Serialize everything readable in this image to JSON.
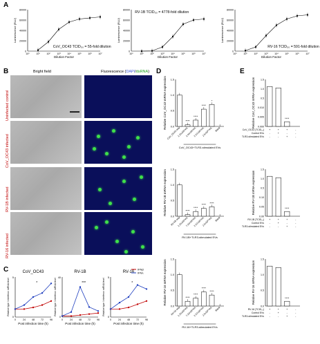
{
  "panel_labels": {
    "a": "A",
    "b": "B",
    "c": "C",
    "d": "D",
    "e": "E"
  },
  "panelA": {
    "ylabel": "Luminescence (RLU)",
    "xlabel": "Dilution Factor",
    "charts": [
      {
        "title": "CoV_OC43 TCID₅₀ = 55-fold dilution",
        "yticks": [
          "0",
          "20000",
          "40000",
          "60000",
          "80000"
        ],
        "ylim": [
          0,
          80000
        ],
        "x": [
          1,
          2,
          3,
          4,
          5,
          6,
          7
        ],
        "y": [
          2000,
          18000,
          42000,
          56000,
          62000,
          64000,
          66000
        ]
      },
      {
        "title": "RV-1B TCID₅₀ = 4778-fold dilution",
        "yticks": [
          "0",
          "20000",
          "40000",
          "60000",
          "80000"
        ],
        "ylim": [
          0,
          80000
        ],
        "x": [
          1,
          2,
          3,
          4,
          5,
          6,
          7
        ],
        "y": [
          0,
          500,
          8000,
          28000,
          52000,
          60000,
          62000
        ]
      },
      {
        "title": "RV-16 TCID₅₀ = 591-fold dilution",
        "yticks": [
          "0",
          "20000",
          "40000",
          "60000",
          "80000"
        ],
        "ylim": [
          0,
          80000
        ],
        "x": [
          1,
          2,
          3,
          4,
          5,
          6,
          7
        ],
        "y": [
          1000,
          8000,
          30000,
          50000,
          62000,
          68000,
          70000
        ]
      }
    ],
    "xticks": [
      "10⁰",
      "10¹",
      "10²",
      "10³",
      "10⁴",
      "10⁵",
      "10⁶",
      "10⁷"
    ]
  },
  "panelB": {
    "col_bright": "Bright field",
    "col_fluor_pre": "Fluorescence (",
    "col_fluor_dapi": "DAPI",
    "col_fluor_sep": "/",
    "col_fluor_ds": "dsRNA",
    "col_fluor_post": ")",
    "rows": [
      "Uninfected control",
      "CoV_OC43 infected",
      "RV-1B infected",
      "RV-16 infected"
    ]
  },
  "panelC": {
    "ylabel": "Relative type I interferon mRNA level",
    "xlabel": "Post infection time (h)",
    "legend": [
      "IFNβ",
      "IFNλ"
    ],
    "legend_colors": [
      "#c00000",
      "#1f3fbf"
    ],
    "xticks": [
      "0",
      "24",
      "48",
      "72",
      "96"
    ],
    "charts": [
      {
        "title": "CoV_OC43",
        "ymax": "5",
        "ifnb": [
          1,
          1,
          1.2,
          1.5,
          2
        ],
        "ifnl": [
          1,
          1.5,
          2.5,
          3,
          4.2
        ],
        "star": "*"
      },
      {
        "title": "RV-1B",
        "ymax": "40",
        "ifnb": [
          1,
          1,
          2,
          3,
          4
        ],
        "ifnl": [
          1,
          5,
          30,
          10,
          6
        ],
        "star": "***"
      },
      {
        "title": "RV-16",
        "ymax": "5",
        "ifnb": [
          1,
          1,
          1.2,
          1.6,
          2
        ],
        "ifnl": [
          1,
          1.8,
          2.5,
          4,
          3.5
        ],
        "star": "*"
      }
    ]
  },
  "panelD": {
    "charts": [
      {
        "ylabel": "Relative CoV_OC43 mRNA expression",
        "bracket": "CoV_OC43+TLR3-stimulated EVs",
        "cats": [
          "CoV_OC43 only",
          "1.25x10⁹/mL",
          "1.44x10⁹/mL",
          "2.57x10⁹/mL",
          "2.5x10¹⁰/mL",
          "Blank"
        ],
        "values": [
          1,
          0.05,
          0.2,
          0.55,
          0.7,
          0
        ],
        "stars": [
          "",
          "****",
          "****",
          "****",
          "*",
          ""
        ],
        "yticks": [
          "0.0",
          "0.5",
          "1.0",
          "1.5"
        ],
        "ymax": 1.5
      },
      {
        "ylabel": "Relative RV-1B mRNA expression",
        "bracket": "RV-1B+TLR3-stimulated EVs",
        "cats": [
          "RV-1B only",
          "1.25x10⁹/mL",
          "7.14x10⁹/mL",
          "2.57x10⁹/mL",
          "2.5x10¹⁰/mL",
          "Blank"
        ],
        "values": [
          1,
          0.05,
          0.15,
          0.25,
          0.3,
          0
        ],
        "stars": [
          "",
          "****",
          "****",
          "****",
          "****",
          ""
        ],
        "yticks": [
          "0.0",
          "0.5",
          "1.0",
          "1.5"
        ],
        "ymax": 1.5
      },
      {
        "ylabel": "Relative RV-16 mRNA expression",
        "bracket": "RV-16+TLR3-stimulated EVs",
        "cats": [
          "RV-16 only",
          "1.25x10⁹/mL",
          "7.14x10⁹/mL",
          "2.57x10⁹/mL",
          "2.5x10¹⁰/mL",
          "Blank"
        ],
        "values": [
          1,
          0.15,
          0.25,
          0.45,
          0.35,
          0
        ],
        "stars": [
          "",
          "****",
          "****",
          "****",
          "****",
          ""
        ],
        "yticks": [
          "0.0",
          "0.5",
          "1.0",
          "1.5"
        ],
        "ymax": 1.5
      }
    ]
  },
  "panelE": {
    "charts": [
      {
        "ylabel": "Relative CoV_OC43 mRNA expression",
        "rows": [
          "CoV_OC43 (TCID₅₀)",
          "Control EVs",
          "TLR3-stimulated EVs"
        ],
        "values": [
          1,
          1,
          0.004,
          0
        ],
        "stars": [
          "",
          "",
          "****",
          ""
        ],
        "yticks": [
          "0.000",
          "0.005",
          "0.010",
          "0.5",
          "1.0",
          "1.5"
        ]
      },
      {
        "ylabel": "Relative RV-1B mRNA expression",
        "rows": [
          "RV-1B (TCID₅₀)",
          "Control EVs",
          "TLR3-stimulated EVs"
        ],
        "values": [
          1,
          0.9,
          0.02,
          0
        ],
        "stars": [
          "",
          "",
          "****",
          ""
        ],
        "yticks": [
          "0.00",
          "0.05",
          "0.10",
          "0.5",
          "1.0",
          "1.5"
        ]
      },
      {
        "ylabel": "Relative RV-16 mRNA expression",
        "rows": [
          "RV-16 (TCID₅₀)",
          "Control EVs",
          "TLR3-stimulated EVs"
        ],
        "values": [
          1,
          1,
          0.2,
          0
        ],
        "stars": [
          "",
          "",
          "****",
          ""
        ],
        "yticks": [
          "0.0",
          "0.5",
          "1.0",
          "1.5"
        ]
      }
    ],
    "signs": [
      [
        "+",
        "+",
        "+",
        "-"
      ],
      [
        "-",
        "+",
        "-",
        "-"
      ],
      [
        "-",
        "-",
        "+",
        "-"
      ]
    ]
  }
}
